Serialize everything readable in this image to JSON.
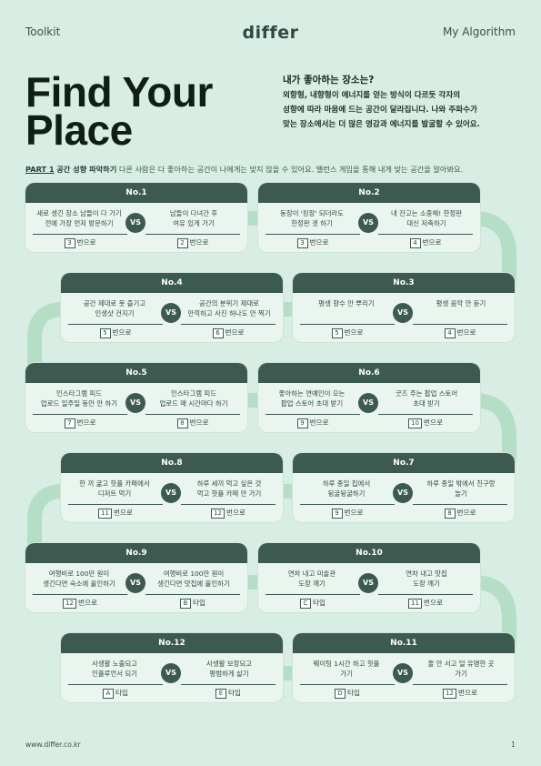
{
  "header": {
    "left": "Toolkit",
    "logo": "differ",
    "right": "My Algorithm"
  },
  "title_lines": [
    "Find Your",
    "Place"
  ],
  "intro": {
    "question": "내가 좋아하는 장소는?",
    "lines": [
      "외향형, 내향형이 에너지를 얻는 방식이 다르듯 각자의",
      "성향에 따라 마음에 드는 공간이 달라집니다. 나와 주파수가",
      "맞는 장소에서는 더 많은 영감과 에너지를 발굴할 수 있어요."
    ]
  },
  "part": {
    "label": "PART 1",
    "title": "공간 성향 파악하기",
    "desc": "다른 사람은 다 좋아하는 공간이 나에게는 맞지 않을 수 있어요. 밸런스 게임을 통해 내게 맞는 공간을 알아봐요."
  },
  "vs_label": "VS",
  "suffix": "번으로",
  "type_suffix": "타입",
  "cards": [
    {
      "no": "No.1",
      "left": [
        "새로 생긴 장소 남들이 다 가기",
        "전에 가장 먼저 방문하기"
      ],
      "right": [
        "남들이 다녀간 후",
        "여유 있게 가기"
      ],
      "left_ans": "3",
      "left_ans_text": "번으로",
      "right_ans": "2",
      "right_ans_text": "번으로"
    },
    {
      "no": "No.2",
      "left": [
        "동장이 '핑장' 되더라도",
        "한정판 겟 하기"
      ],
      "right": [
        "내 잔고는 소중해! 한정판",
        "대신 저축하기"
      ],
      "left_ans": "3",
      "left_ans_text": "번으로",
      "right_ans": "4",
      "right_ans_text": "번으로"
    },
    {
      "no": "No.4",
      "left": [
        "공간 제대로 못 즐기고",
        "인생샷 건지기"
      ],
      "right": [
        "공간의 분위기 제대로",
        "만끽하고 사진 하나도 안 찍기"
      ],
      "left_ans": "5",
      "left_ans_text": "번으로",
      "right_ans": "6",
      "right_ans_text": "번으로"
    },
    {
      "no": "No.3",
      "left": [
        "평생 향수 안 뿌리기"
      ],
      "right": [
        "평생 음악 안 듣기"
      ],
      "left_ans": "5",
      "left_ans_text": "번으로",
      "right_ans": "4",
      "right_ans_text": "번으로"
    },
    {
      "no": "No.5",
      "left": [
        "인스타그램 피드",
        "업로드 일주일 동안 안 하기"
      ],
      "right": [
        "인스타그램 피드",
        "업로드 매 시간마다 하기"
      ],
      "left_ans": "7",
      "left_ans_text": "번으로",
      "right_ans": "8",
      "right_ans_text": "번으로"
    },
    {
      "no": "No.6",
      "left": [
        "좋아하는 연예인이 오는",
        "팝업 스토어 초대 받기"
      ],
      "right": [
        "굿즈 주는 팝업 스토어",
        "초대 받기"
      ],
      "left_ans": "9",
      "left_ans_text": "번으로",
      "right_ans": "10",
      "right_ans_text": "번으로"
    },
    {
      "no": "No.8",
      "left": [
        "한 끼 굶고 핫플 카페에서",
        "디저트 먹기"
      ],
      "right": [
        "하루 세끼 먹고 싶은 것",
        "먹고 핫플 카페 안 가기"
      ],
      "left_ans": "11",
      "left_ans_text": "번으로",
      "right_ans": "12",
      "right_ans_text": "번으로"
    },
    {
      "no": "No.7",
      "left": [
        "하루 종일 집에서",
        "뒹굴뒹굴하기"
      ],
      "right": [
        "하루 종일 밖에서 친구랑",
        "놀기"
      ],
      "left_ans": "9",
      "left_ans_text": "번으로",
      "right_ans": "8",
      "right_ans_text": "번으로"
    },
    {
      "no": "No.9",
      "left": [
        "여행비로 100만 원이",
        "생긴다면 숙소에 올인하기"
      ],
      "right": [
        "여행비로 100만 원이",
        "생긴다면 맛집에 올인하기"
      ],
      "left_ans": "12",
      "left_ans_text": "번으로",
      "right_ans": "B",
      "right_ans_text": "타입"
    },
    {
      "no": "No.10",
      "left": [
        "연차 내고 미술관",
        "도장 깨기"
      ],
      "right": [
        "연차 내고 맛집",
        "도장 깨기"
      ],
      "left_ans": "C",
      "left_ans_text": "타입",
      "right_ans": "11",
      "right_ans_text": "번으로"
    },
    {
      "no": "No.12",
      "left": [
        "사생활 노출되고",
        "인플루언서 되기"
      ],
      "right": [
        "사생활 보장되고",
        "평범하게 살기"
      ],
      "left_ans": "A",
      "left_ans_text": "타입",
      "right_ans": "E",
      "right_ans_text": "타입"
    },
    {
      "no": "No.11",
      "left": [
        "웨이팅 1시간 하고 핫플",
        "가기"
      ],
      "right": [
        "줄 안 서고 덜 유명한 곳",
        "가기"
      ],
      "left_ans": "D",
      "left_ans_text": "타입",
      "right_ans": "12",
      "right_ans_text": "번으로"
    }
  ],
  "footer": {
    "url": "www.differ.co.kr",
    "page": "1"
  },
  "colors": {
    "background": "#d8ede3",
    "card_header": "#3d5a50",
    "path": "#b5dec6",
    "title": "#0f1f18"
  }
}
